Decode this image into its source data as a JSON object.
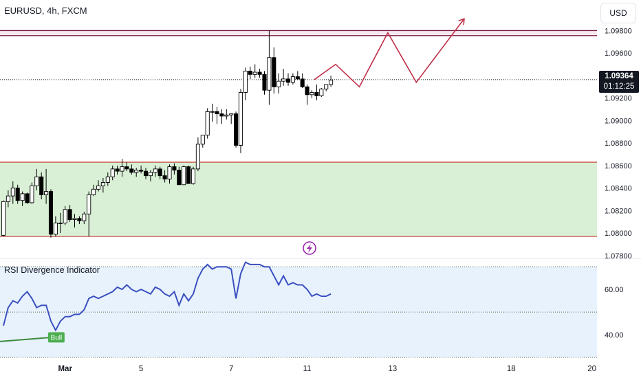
{
  "header": {
    "symbol_title": "EURUSD, 4h, FXCM",
    "currency": "USD"
  },
  "price_tag": {
    "price": "1.09364",
    "countdown": "01:12:25"
  },
  "colors": {
    "bull": "#ffffff",
    "bear": "#000000",
    "support_zone": "#d9f0d6",
    "support_line": "#c0392b",
    "resistance_line": "#7a2048",
    "projection": "#c0304a",
    "rsi_line": "#3a4fc0",
    "rsi_band": "#e8f2fd",
    "div_line": "#3d8b3d",
    "bull_label": "#4caf50",
    "flash_icon": "#9c27b0"
  },
  "icons": {
    "indicator_status": "flash-icon"
  },
  "chart_data": [
    {
      "type": "candlestick",
      "title": "EURUSD, 4h, FXCM",
      "ylabel": "",
      "ylim": [
        1.0772,
        1.0998
      ],
      "y_ticks": [
        "1.09800",
        "1.09600",
        "1.09200",
        "1.09000",
        "1.08800",
        "1.08600",
        "1.08400",
        "1.08200",
        "1.08000",
        "1.07800"
      ],
      "x_ticks": [
        {
          "label": "Mar",
          "idx": 13
        },
        {
          "label": "5",
          "idx": 29
        },
        {
          "label": "7",
          "idx": 48
        },
        {
          "label": "11",
          "idx": 64
        },
        {
          "label": "13",
          "idx": 82
        },
        {
          "label": "18",
          "idx": 107
        },
        {
          "label": "20",
          "idx": 124
        }
      ],
      "last_price": 1.09364,
      "candles": [
        [
          1.0798,
          1.0829,
          1.0797,
          1.0828
        ],
        [
          1.0828,
          1.0838,
          1.0823,
          1.0833
        ],
        [
          1.0833,
          1.0846,
          1.0826,
          1.084
        ],
        [
          1.084,
          1.0843,
          1.0826,
          1.0829
        ],
        [
          1.0829,
          1.0837,
          1.0824,
          1.0835
        ],
        [
          1.0835,
          1.0836,
          1.0826,
          1.0827
        ],
        [
          1.0827,
          1.0845,
          1.0826,
          1.0842
        ],
        [
          1.0842,
          1.0857,
          1.0838,
          1.085
        ],
        [
          1.085,
          1.0854,
          1.083,
          1.0834
        ],
        [
          1.0834,
          1.0857,
          1.0826,
          1.0837
        ],
        [
          1.0837,
          1.0839,
          1.0796,
          1.0799
        ],
        [
          1.0799,
          1.0815,
          1.0797,
          1.0809
        ],
        [
          1.0809,
          1.0818,
          1.08,
          1.0809
        ],
        [
          1.0809,
          1.0824,
          1.0807,
          1.0821
        ],
        [
          1.0821,
          1.0825,
          1.081,
          1.0812
        ],
        [
          1.0812,
          1.0817,
          1.0805,
          1.0813
        ],
        [
          1.0813,
          1.0815,
          1.0808,
          1.0811
        ],
        [
          1.0811,
          1.0819,
          1.0808,
          1.0817
        ],
        [
          1.0817,
          1.0837,
          1.0797,
          1.0834
        ],
        [
          1.0834,
          1.0843,
          1.0833,
          1.0839
        ],
        [
          1.0839,
          1.0847,
          1.0837,
          1.0842
        ],
        [
          1.0842,
          1.0849,
          1.0836,
          1.0845
        ],
        [
          1.0845,
          1.0854,
          1.0842,
          1.085
        ],
        [
          1.085,
          1.086,
          1.0847,
          1.0857
        ],
        [
          1.0857,
          1.086,
          1.0852,
          1.0855
        ],
        [
          1.0855,
          1.0866,
          1.085,
          1.0859
        ],
        [
          1.0859,
          1.0863,
          1.0855,
          1.0857
        ],
        [
          1.0857,
          1.0861,
          1.0852,
          1.0854
        ],
        [
          1.0854,
          1.0858,
          1.085,
          1.0856
        ],
        [
          1.0856,
          1.086,
          1.0853,
          1.0855
        ],
        [
          1.0855,
          1.0858,
          1.0848,
          1.0851
        ],
        [
          1.0851,
          1.0856,
          1.0846,
          1.0854
        ],
        [
          1.0854,
          1.086,
          1.085,
          1.0857
        ],
        [
          1.0857,
          1.0859,
          1.0848,
          1.0851
        ],
        [
          1.0851,
          1.0856,
          1.0845,
          1.0848
        ],
        [
          1.0848,
          1.0861,
          1.0844,
          1.0859
        ],
        [
          1.0859,
          1.0862,
          1.0852,
          1.0856
        ],
        [
          1.0856,
          1.0859,
          1.0843,
          1.0843
        ],
        [
          1.0843,
          1.086,
          1.0843,
          1.0859
        ],
        [
          1.0859,
          1.086,
          1.0844,
          1.0844
        ],
        [
          1.0844,
          1.0859,
          1.0843,
          1.0857
        ],
        [
          1.0857,
          1.0885,
          1.0855,
          1.0879
        ],
        [
          1.0879,
          1.0887,
          1.0876,
          1.0887
        ],
        [
          1.0887,
          1.0911,
          1.0884,
          1.0908
        ],
        [
          1.0908,
          1.0915,
          1.0899,
          1.0908
        ],
        [
          1.0908,
          1.0912,
          1.0897,
          1.0906
        ],
        [
          1.0906,
          1.091,
          1.0897,
          1.0904
        ],
        [
          1.0904,
          1.091,
          1.0901,
          1.0905
        ],
        [
          1.0905,
          1.0906,
          1.0897,
          1.0906
        ],
        [
          1.0906,
          1.0908,
          1.0876,
          1.0878
        ],
        [
          1.0878,
          1.0928,
          1.0871,
          1.0925
        ],
        [
          1.0925,
          1.0947,
          1.0918,
          1.0944
        ],
        [
          1.0944,
          1.0948,
          1.0937,
          1.0941
        ],
        [
          1.0941,
          1.095,
          1.0938,
          1.0943
        ],
        [
          1.0943,
          1.0946,
          1.0938,
          1.0941
        ],
        [
          1.0941,
          1.0944,
          1.0923,
          1.0927
        ],
        [
          1.0927,
          1.098,
          1.0914,
          1.0956
        ],
        [
          1.0956,
          1.0965,
          1.0924,
          1.093
        ],
        [
          1.093,
          1.0942,
          1.0924,
          1.0935
        ],
        [
          1.0935,
          1.0946,
          1.0931,
          1.0937
        ],
        [
          1.0937,
          1.0942,
          1.0931,
          1.0934
        ],
        [
          1.0934,
          1.0942,
          1.0932,
          1.0939
        ],
        [
          1.0939,
          1.0944,
          1.0936,
          1.0937
        ],
        [
          1.0937,
          1.0942,
          1.0929,
          1.093
        ],
        [
          1.093,
          1.0932,
          1.0914,
          1.0923
        ],
        [
          1.0923,
          1.0927,
          1.092,
          1.0925
        ],
        [
          1.0925,
          1.0932,
          1.0918,
          1.0922
        ],
        [
          1.0922,
          1.0929,
          1.0921,
          1.0928
        ],
        [
          1.0928,
          1.0932,
          1.0926,
          1.0932
        ],
        [
          1.0932,
          1.094,
          1.093,
          1.0936
        ]
      ],
      "zones": [
        {
          "type": "support",
          "from": 1.0797,
          "to": 1.0863
        },
        {
          "type": "resistance",
          "from": 1.09755,
          "to": 1.098
        }
      ],
      "projection": [
        {
          "idx": 65.5,
          "price": 1.09364
        },
        {
          "idx": 70,
          "price": 1.095
        },
        {
          "idx": 75,
          "price": 1.093
        },
        {
          "idx": 81,
          "price": 1.0978
        },
        {
          "idx": 87,
          "price": 1.0934
        },
        {
          "idx": 97,
          "price": 1.099
        }
      ]
    },
    {
      "type": "line",
      "title": "RSI Divergence Indicator",
      "ylim": [
        30,
        74
      ],
      "y_ticks": [
        "60.00",
        "40.00"
      ],
      "levels": [
        70,
        50,
        30
      ],
      "series": [
        {
          "values": [
            44,
            52,
            55,
            54,
            57,
            59,
            56,
            52,
            53,
            53,
            46,
            42,
            46,
            48,
            48,
            49,
            49,
            51,
            56,
            57,
            56,
            57,
            58,
            59,
            61,
            60,
            62,
            60,
            59,
            60,
            59,
            58,
            61,
            60,
            58,
            57,
            59,
            53,
            58,
            55,
            58,
            65,
            69,
            71,
            69,
            70,
            70,
            70,
            69,
            56,
            67,
            72,
            71,
            71,
            71,
            70,
            70,
            66,
            62,
            66,
            62,
            63,
            62,
            62,
            60,
            57,
            58,
            57,
            57,
            58
          ]
        }
      ],
      "divergence": [
        {
          "from_idx": 0,
          "to_idx": 11,
          "from_value": 37,
          "to_value": 39
        }
      ],
      "bull_label": "Bull"
    }
  ]
}
